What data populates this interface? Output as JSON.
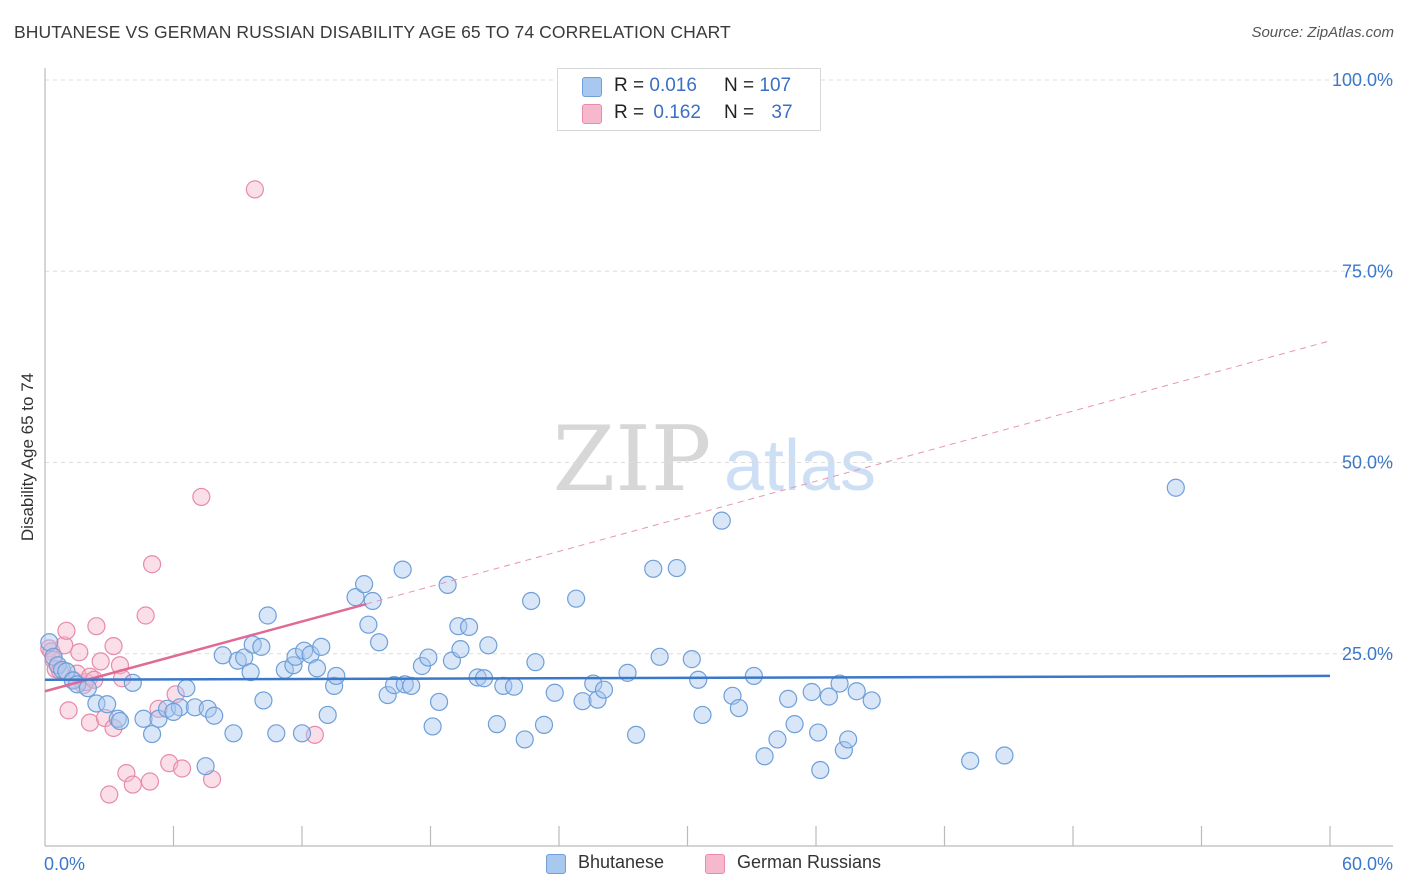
{
  "title": "BHUTANESE VS GERMAN RUSSIAN DISABILITY AGE 65 TO 74 CORRELATION CHART",
  "source": "Source: ZipAtlas.com",
  "watermark": {
    "zip": "ZIP",
    "atlas": "atlas"
  },
  "legend": {
    "rows": [
      {
        "r_label": "R =",
        "r_value": "0.016",
        "n_label": "N =",
        "n_value": "107",
        "color": "#a8c8f0"
      },
      {
        "r_label": "R =",
        "r_value": "0.162",
        "n_label": "N =",
        "n_value": "37",
        "color": "#f5b8cc"
      }
    ]
  },
  "bottom_legend": {
    "bhutanese": "Bhutanese",
    "german_russians": "German Russians"
  },
  "chart_data": {
    "type": "scatter",
    "ylabel": "Disability Age 65 to 74",
    "xlabel": "",
    "xlim": [
      0,
      60
    ],
    "ylim": [
      0,
      105
    ],
    "x_tick_labels": {
      "left": "0.0%",
      "right": "60.0%"
    },
    "y_ticks": [
      {
        "value": 100,
        "label": "100.0%"
      },
      {
        "value": 75,
        "label": "75.0%"
      },
      {
        "value": 50,
        "label": "50.0%"
      },
      {
        "value": 25,
        "label": "25.0%"
      }
    ],
    "grid": "horizontal dashed",
    "legend_position": "top-center",
    "colors": {
      "bhutanese": "#3b78c9",
      "bhutanese_fill": "#a8c8f0",
      "german_russians": "#e06a96",
      "german_russians_fill": "#f5b8cc"
    },
    "series": [
      {
        "name": "Bhutanese",
        "trend": {
          "x0": 0,
          "y0": 21.6,
          "x1": 60,
          "y1": 22.1,
          "style": "solid"
        },
        "points": [
          [
            0.2,
            26.5
          ],
          [
            0.4,
            24.6
          ],
          [
            0.6,
            23.5
          ],
          [
            0.8,
            22.9
          ],
          [
            1.0,
            22.7
          ],
          [
            1.3,
            21.5
          ],
          [
            1.5,
            21.0
          ],
          [
            2.0,
            20.5
          ],
          [
            2.4,
            18.5
          ],
          [
            2.9,
            18.4
          ],
          [
            3.4,
            16.5
          ],
          [
            3.5,
            16.2
          ],
          [
            4.1,
            21.2
          ],
          [
            4.6,
            16.5
          ],
          [
            5.0,
            14.5
          ],
          [
            5.3,
            16.5
          ],
          [
            5.7,
            17.8
          ],
          [
            6.3,
            18.0
          ],
          [
            6.0,
            17.4
          ],
          [
            6.6,
            20.5
          ],
          [
            7.0,
            18.0
          ],
          [
            7.6,
            17.8
          ],
          [
            7.5,
            10.3
          ],
          [
            7.9,
            16.9
          ],
          [
            8.3,
            24.8
          ],
          [
            9.0,
            24.1
          ],
          [
            9.3,
            24.5
          ],
          [
            8.8,
            14.6
          ],
          [
            9.6,
            22.6
          ],
          [
            9.7,
            26.2
          ],
          [
            10.1,
            25.9
          ],
          [
            10.2,
            18.9
          ],
          [
            10.4,
            30.0
          ],
          [
            10.8,
            14.6
          ],
          [
            11.2,
            22.9
          ],
          [
            11.6,
            23.5
          ],
          [
            11.7,
            24.6
          ],
          [
            12.1,
            25.4
          ],
          [
            12.4,
            24.9
          ],
          [
            12.7,
            23.1
          ],
          [
            12.9,
            25.9
          ],
          [
            12.0,
            14.6
          ],
          [
            13.2,
            17.0
          ],
          [
            13.5,
            20.8
          ],
          [
            13.6,
            22.1
          ],
          [
            14.5,
            32.4
          ],
          [
            14.9,
            34.1
          ],
          [
            15.1,
            28.8
          ],
          [
            15.3,
            31.9
          ],
          [
            15.6,
            26.5
          ],
          [
            16.0,
            19.6
          ],
          [
            16.3,
            20.9
          ],
          [
            16.7,
            36.0
          ],
          [
            16.8,
            21.0
          ],
          [
            17.1,
            20.8
          ],
          [
            17.6,
            23.4
          ],
          [
            17.9,
            24.5
          ],
          [
            18.1,
            15.5
          ],
          [
            18.4,
            18.7
          ],
          [
            18.8,
            34.0
          ],
          [
            19.0,
            24.1
          ],
          [
            19.3,
            28.6
          ],
          [
            19.4,
            25.6
          ],
          [
            19.8,
            28.5
          ],
          [
            20.2,
            21.9
          ],
          [
            20.5,
            21.8
          ],
          [
            20.7,
            26.1
          ],
          [
            21.1,
            15.8
          ],
          [
            21.4,
            20.8
          ],
          [
            21.9,
            20.7
          ],
          [
            22.4,
            13.8
          ],
          [
            22.7,
            31.9
          ],
          [
            22.9,
            23.9
          ],
          [
            23.3,
            15.7
          ],
          [
            23.8,
            19.9
          ],
          [
            24.8,
            32.2
          ],
          [
            25.1,
            18.8
          ],
          [
            25.6,
            21.1
          ],
          [
            25.8,
            19.0
          ],
          [
            26.1,
            20.3
          ],
          [
            27.2,
            22.5
          ],
          [
            27.6,
            14.4
          ],
          [
            28.4,
            36.1
          ],
          [
            28.7,
            24.6
          ],
          [
            29.5,
            36.2
          ],
          [
            30.2,
            24.3
          ],
          [
            30.5,
            21.6
          ],
          [
            30.7,
            17.0
          ],
          [
            31.6,
            42.4
          ],
          [
            32.1,
            19.5
          ],
          [
            32.4,
            17.9
          ],
          [
            33.1,
            22.1
          ],
          [
            33.6,
            11.6
          ],
          [
            34.2,
            13.8
          ],
          [
            34.7,
            19.1
          ],
          [
            35.0,
            15.8
          ],
          [
            35.8,
            20.0
          ],
          [
            36.1,
            14.7
          ],
          [
            36.2,
            9.8
          ],
          [
            36.6,
            19.4
          ],
          [
            37.1,
            21.1
          ],
          [
            37.3,
            12.4
          ],
          [
            37.5,
            13.8
          ],
          [
            37.9,
            20.1
          ],
          [
            38.6,
            18.9
          ],
          [
            43.2,
            11.0
          ],
          [
            44.8,
            11.7
          ],
          [
            52.8,
            46.7
          ]
        ]
      },
      {
        "name": "German Russians",
        "trend": {
          "x0": 0,
          "y0": 20.1,
          "x1": 15,
          "y1": 31.5,
          "style": "solid",
          "dashed_to": {
            "x": 60,
            "y": 65.9
          }
        },
        "points": [
          [
            0.2,
            25.7
          ],
          [
            0.3,
            25.3
          ],
          [
            0.4,
            24.2
          ],
          [
            0.5,
            23.0
          ],
          [
            0.7,
            22.8
          ],
          [
            0.9,
            26.1
          ],
          [
            1.0,
            28.0
          ],
          [
            1.1,
            17.6
          ],
          [
            1.3,
            21.6
          ],
          [
            1.5,
            22.4
          ],
          [
            1.6,
            25.2
          ],
          [
            1.8,
            20.9
          ],
          [
            1.9,
            21.3
          ],
          [
            2.1,
            22.0
          ],
          [
            2.1,
            16.0
          ],
          [
            2.3,
            21.6
          ],
          [
            2.4,
            28.6
          ],
          [
            2.6,
            24.0
          ],
          [
            2.8,
            16.6
          ],
          [
            3.0,
            6.6
          ],
          [
            3.2,
            15.3
          ],
          [
            3.2,
            26.0
          ],
          [
            3.5,
            23.5
          ],
          [
            3.6,
            21.8
          ],
          [
            3.8,
            9.4
          ],
          [
            4.1,
            7.9
          ],
          [
            4.7,
            30.0
          ],
          [
            4.9,
            8.3
          ],
          [
            5.0,
            36.7
          ],
          [
            5.3,
            17.8
          ],
          [
            5.8,
            10.7
          ],
          [
            6.1,
            19.7
          ],
          [
            6.4,
            10.0
          ],
          [
            7.3,
            45.5
          ],
          [
            7.8,
            8.6
          ],
          [
            9.8,
            85.7
          ],
          [
            12.6,
            14.4
          ]
        ]
      }
    ]
  }
}
